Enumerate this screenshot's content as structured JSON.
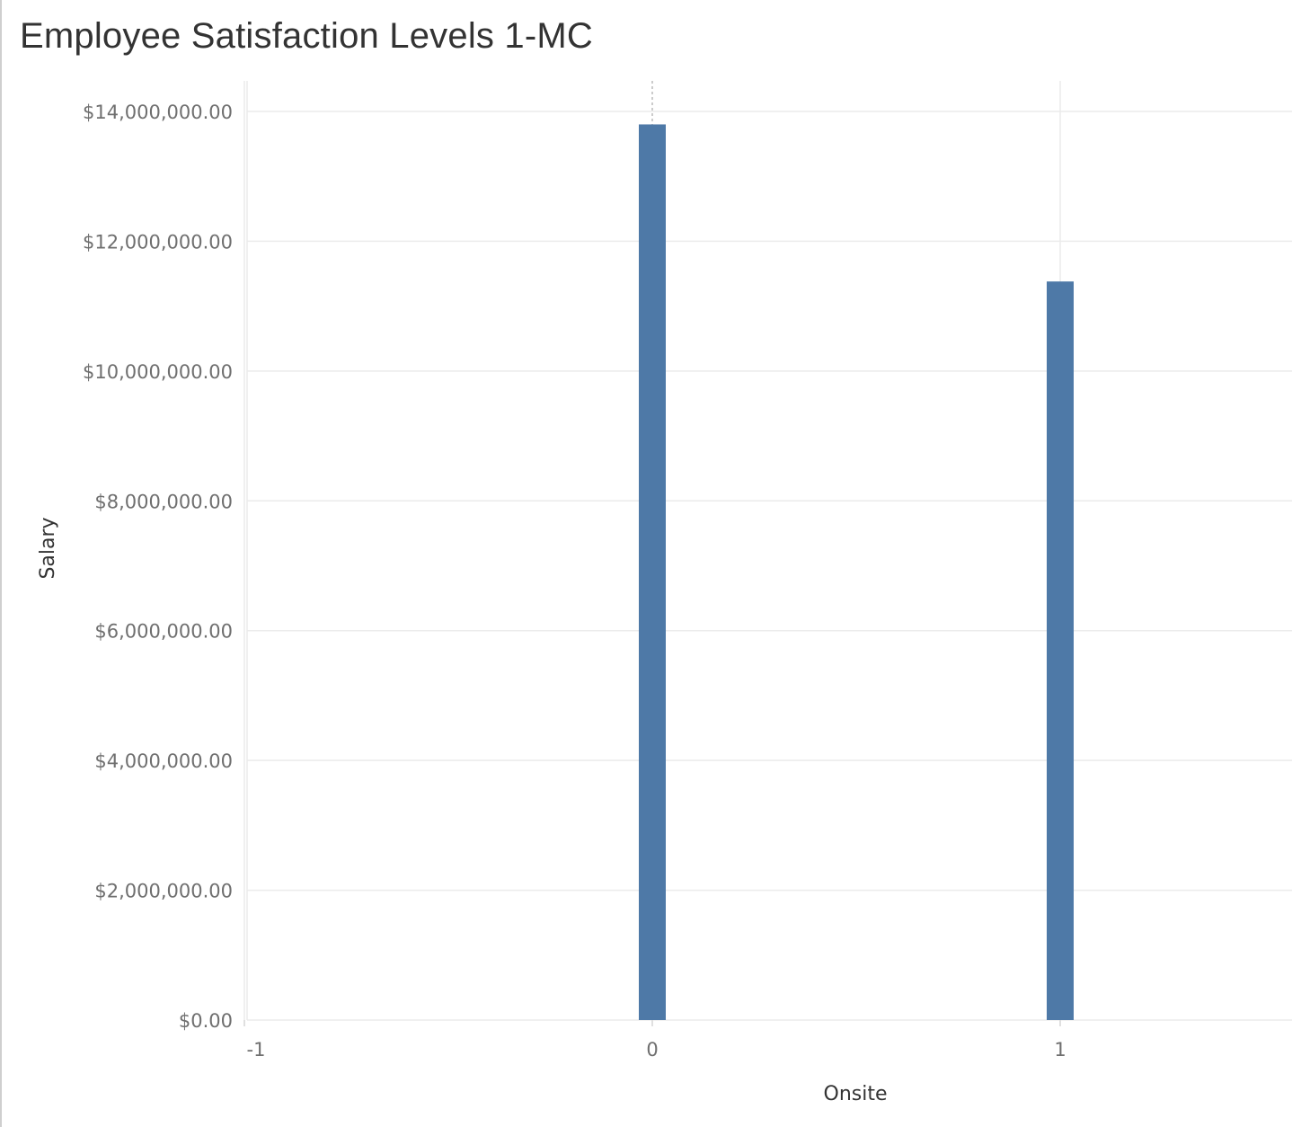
{
  "chart_data": {
    "type": "bar",
    "title": "Employee Satisfaction Levels 1-MC",
    "xlabel": "Onsite",
    "ylabel": "Salary",
    "x_ticks": [
      -1,
      0,
      1
    ],
    "x_tick_labels": [
      "-1",
      "0",
      "1"
    ],
    "xlim": [
      -1,
      1.56
    ],
    "y_ticks": [
      0,
      2000000,
      4000000,
      6000000,
      8000000,
      10000000,
      12000000,
      14000000
    ],
    "y_tick_labels": [
      "$0.00",
      "$2,000,000.00",
      "$4,000,000.00",
      "$6,000,000.00",
      "$8,000,000.00",
      "$10,000,000.00",
      "$12,000,000.00",
      "$14,000,000.00"
    ],
    "ylim": [
      0,
      14500000
    ],
    "grid": true,
    "x": [
      0,
      1
    ],
    "values": [
      13800000,
      11380000
    ],
    "colors": {
      "bar": "#4e79a7",
      "grid": "#ebebeb",
      "reference": "#9a9a9a"
    }
  }
}
